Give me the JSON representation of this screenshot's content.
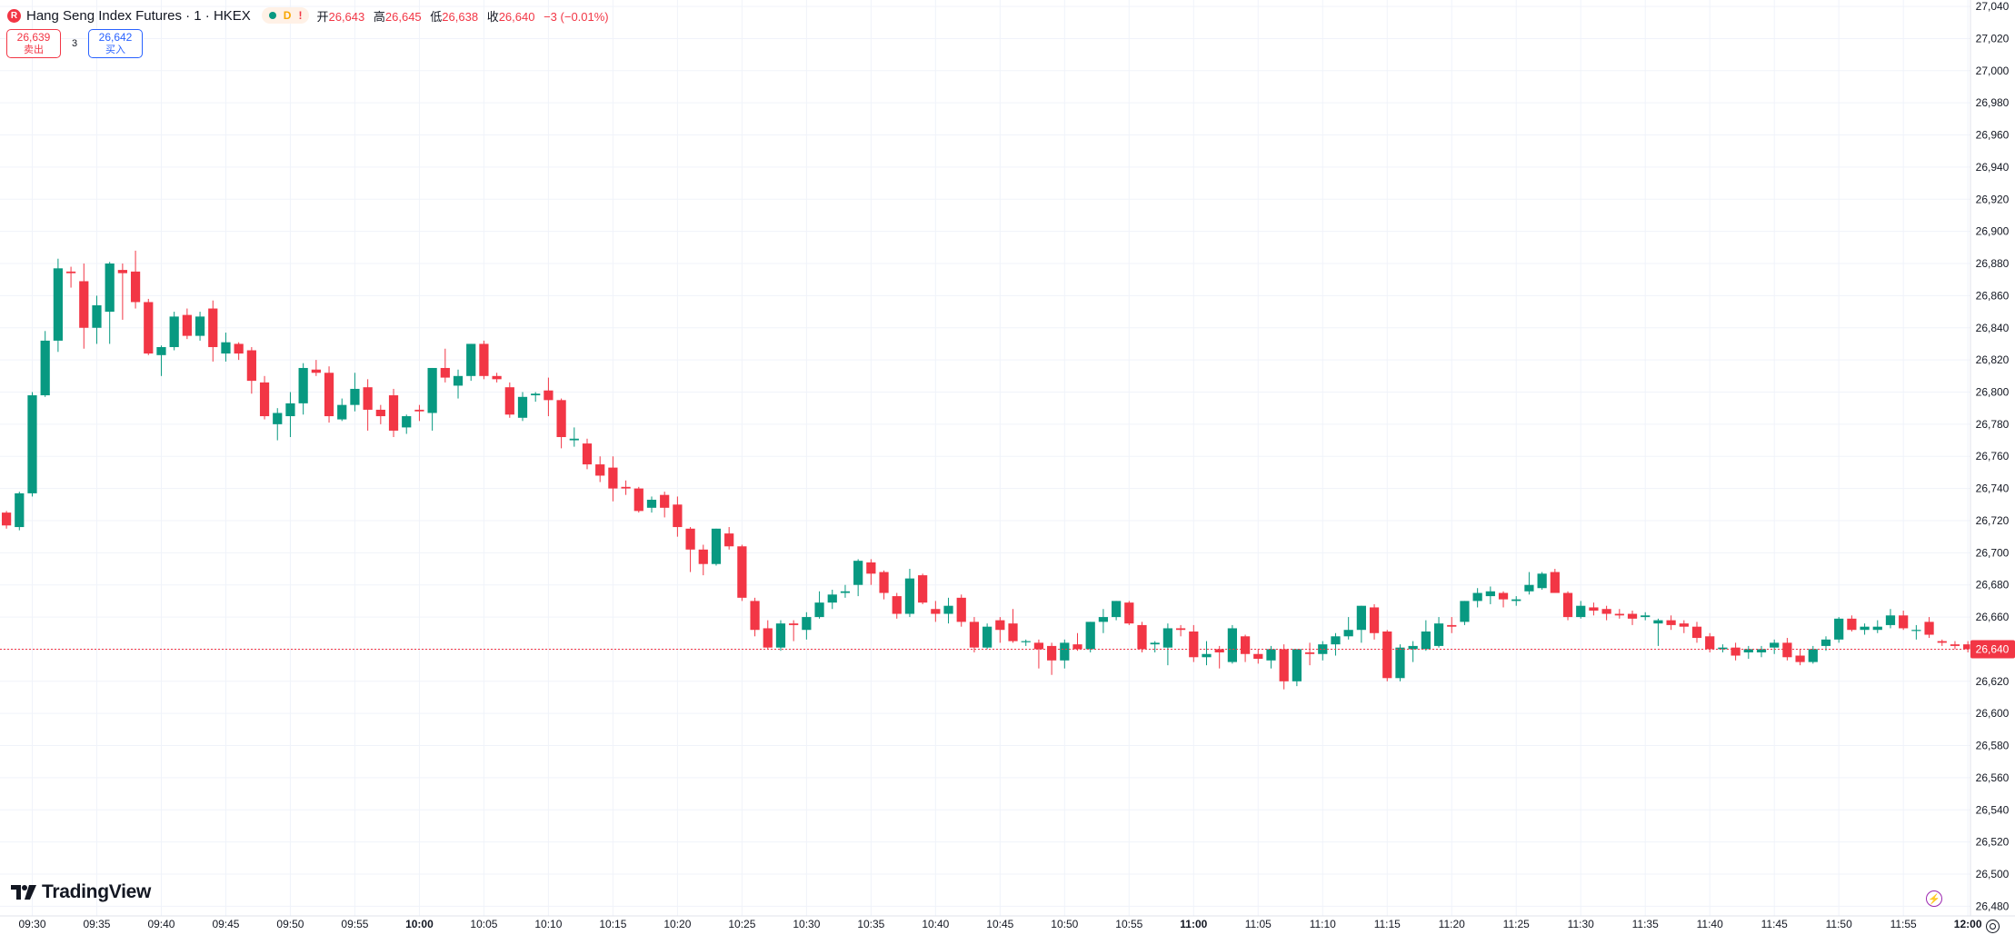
{
  "header": {
    "symbol_icon": "R",
    "title": "Hang Seng Index Futures · 1 · HKEX",
    "status": {
      "market_dot": "green-dot",
      "delay_label": "D",
      "warning_label": "!"
    },
    "ohlc": {
      "open_label": "开",
      "open": "26,643",
      "high_label": "高",
      "high": "26,645",
      "low_label": "低",
      "low": "26,638",
      "close_label": "收",
      "close": "26,640",
      "change": "−3 (−0.01%)"
    }
  },
  "trade": {
    "sell_price": "26,639",
    "sell_label": "卖出",
    "spread": "3",
    "buy_price": "26,642",
    "buy_label": "买入"
  },
  "branding": {
    "name": "TradingView"
  },
  "colors": {
    "up": "#089981",
    "down": "#f23645",
    "last_price": "#f23645",
    "grid": "#f0f3fa",
    "text": "#131722"
  },
  "chart_data": {
    "type": "candlestick",
    "interval": "1 minute",
    "y_ticks": [
      27040,
      27020,
      27000,
      26980,
      26960,
      26940,
      26920,
      26900,
      26880,
      26860,
      26840,
      26820,
      26800,
      26780,
      26760,
      26740,
      26720,
      26700,
      26680,
      26660,
      26640,
      26620,
      26600,
      26580,
      26560,
      26540,
      26520,
      26500,
      26480
    ],
    "y_tick_labels": [
      "27,040",
      "27,020",
      "27,000",
      "26,980",
      "26,960",
      "26,940",
      "26,920",
      "26,900",
      "26,880",
      "26,860",
      "26,840",
      "26,820",
      "26,800",
      "26,780",
      "26,760",
      "26,740",
      "26,720",
      "26,700",
      "26,680",
      "26,660",
      "26,640",
      "26,620",
      "26,600",
      "26,580",
      "26,560",
      "26,540",
      "26,520",
      "26,500",
      "26,480"
    ],
    "x_ticks": [
      {
        "label": "09:30",
        "index": 2,
        "bold": false
      },
      {
        "label": "09:35",
        "index": 7,
        "bold": false
      },
      {
        "label": "09:40",
        "index": 12,
        "bold": false
      },
      {
        "label": "09:45",
        "index": 17,
        "bold": false
      },
      {
        "label": "09:50",
        "index": 22,
        "bold": false
      },
      {
        "label": "09:55",
        "index": 27,
        "bold": false
      },
      {
        "label": "10:00",
        "index": 32,
        "bold": true
      },
      {
        "label": "10:05",
        "index": 37,
        "bold": false
      },
      {
        "label": "10:10",
        "index": 42,
        "bold": false
      },
      {
        "label": "10:15",
        "index": 47,
        "bold": false
      },
      {
        "label": "10:20",
        "index": 52,
        "bold": false
      },
      {
        "label": "10:25",
        "index": 57,
        "bold": false
      },
      {
        "label": "10:30",
        "index": 62,
        "bold": false
      },
      {
        "label": "10:35",
        "index": 67,
        "bold": false
      },
      {
        "label": "10:40",
        "index": 72,
        "bold": false
      },
      {
        "label": "10:45",
        "index": 77,
        "bold": false
      },
      {
        "label": "10:50",
        "index": 82,
        "bold": false
      },
      {
        "label": "10:55",
        "index": 87,
        "bold": false
      },
      {
        "label": "11:00",
        "index": 92,
        "bold": true
      },
      {
        "label": "11:05",
        "index": 97,
        "bold": false
      },
      {
        "label": "11:10",
        "index": 102,
        "bold": false
      },
      {
        "label": "11:15",
        "index": 107,
        "bold": false
      },
      {
        "label": "11:20",
        "index": 112,
        "bold": false
      },
      {
        "label": "11:25",
        "index": 117,
        "bold": false
      },
      {
        "label": "11:30",
        "index": 122,
        "bold": false
      },
      {
        "label": "11:35",
        "index": 127,
        "bold": false
      },
      {
        "label": "11:40",
        "index": 132,
        "bold": false
      },
      {
        "label": "11:45",
        "index": 137,
        "bold": false
      },
      {
        "label": "11:50",
        "index": 142,
        "bold": false
      },
      {
        "label": "11:55",
        "index": 147,
        "bold": false
      },
      {
        "label": "12:00",
        "index": 152,
        "bold": true
      }
    ],
    "y_range": [
      26474,
      27044
    ],
    "x_index_range": [
      -0.5,
      152.2
    ],
    "last_price": 26640,
    "last_price_label": "26,640",
    "grid": true,
    "candles": [
      {
        "o": 26725,
        "h": 26726,
        "l": 26715,
        "c": 26717
      },
      {
        "o": 26716,
        "h": 26738,
        "l": 26714,
        "c": 26737
      },
      {
        "o": 26737,
        "h": 26800,
        "l": 26735,
        "c": 26798
      },
      {
        "o": 26798,
        "h": 26838,
        "l": 26797,
        "c": 26832
      },
      {
        "o": 26832,
        "h": 26883,
        "l": 26825,
        "c": 26877
      },
      {
        "o": 26875,
        "h": 26878,
        "l": 26865,
        "c": 26874
      },
      {
        "o": 26869,
        "h": 26880,
        "l": 26827,
        "c": 26840
      },
      {
        "o": 26840,
        "h": 26860,
        "l": 26830,
        "c": 26854
      },
      {
        "o": 26850,
        "h": 26881,
        "l": 26830,
        "c": 26880
      },
      {
        "o": 26876,
        "h": 26880,
        "l": 26845,
        "c": 26874
      },
      {
        "o": 26875,
        "h": 26888,
        "l": 26852,
        "c": 26856
      },
      {
        "o": 26856,
        "h": 26858,
        "l": 26823,
        "c": 26824
      },
      {
        "o": 26823,
        "h": 26829,
        "l": 26810,
        "c": 26828
      },
      {
        "o": 26828,
        "h": 26850,
        "l": 26826,
        "c": 26847
      },
      {
        "o": 26848,
        "h": 26852,
        "l": 26833,
        "c": 26835
      },
      {
        "o": 26835,
        "h": 26850,
        "l": 26832,
        "c": 26847
      },
      {
        "o": 26852,
        "h": 26857,
        "l": 26819,
        "c": 26828
      },
      {
        "o": 26824,
        "h": 26837,
        "l": 26819,
        "c": 26831
      },
      {
        "o": 26830,
        "h": 26831,
        "l": 26820,
        "c": 26824
      },
      {
        "o": 26826,
        "h": 26828,
        "l": 26799,
        "c": 26807
      },
      {
        "o": 26806,
        "h": 26810,
        "l": 26783,
        "c": 26785
      },
      {
        "o": 26780,
        "h": 26790,
        "l": 26770,
        "c": 26787
      },
      {
        "o": 26785,
        "h": 26800,
        "l": 26772,
        "c": 26793
      },
      {
        "o": 26793,
        "h": 26818,
        "l": 26786,
        "c": 26815
      },
      {
        "o": 26814,
        "h": 26820,
        "l": 26810,
        "c": 26812
      },
      {
        "o": 26812,
        "h": 26816,
        "l": 26781,
        "c": 26785
      },
      {
        "o": 26783,
        "h": 26796,
        "l": 26782,
        "c": 26792
      },
      {
        "o": 26792,
        "h": 26812,
        "l": 26788,
        "c": 26802
      },
      {
        "o": 26803,
        "h": 26808,
        "l": 26776,
        "c": 26789
      },
      {
        "o": 26789,
        "h": 26792,
        "l": 26780,
        "c": 26785
      },
      {
        "o": 26798,
        "h": 26802,
        "l": 26772,
        "c": 26776
      },
      {
        "o": 26778,
        "h": 26786,
        "l": 26774,
        "c": 26785
      },
      {
        "o": 26789,
        "h": 26792,
        "l": 26782,
        "c": 26788
      },
      {
        "o": 26787,
        "h": 26815,
        "l": 26776,
        "c": 26815
      },
      {
        "o": 26815,
        "h": 26827,
        "l": 26806,
        "c": 26809
      },
      {
        "o": 26804,
        "h": 26814,
        "l": 26796,
        "c": 26810
      },
      {
        "o": 26810,
        "h": 26830,
        "l": 26807,
        "c": 26830
      },
      {
        "o": 26830,
        "h": 26832,
        "l": 26808,
        "c": 26810
      },
      {
        "o": 26810,
        "h": 26812,
        "l": 26806,
        "c": 26808
      },
      {
        "o": 26803,
        "h": 26806,
        "l": 26784,
        "c": 26786
      },
      {
        "o": 26784,
        "h": 26800,
        "l": 26782,
        "c": 26797
      },
      {
        "o": 26798,
        "h": 26800,
        "l": 26794,
        "c": 26799
      },
      {
        "o": 26801,
        "h": 26809,
        "l": 26785,
        "c": 26795
      },
      {
        "o": 26795,
        "h": 26796,
        "l": 26765,
        "c": 26772
      },
      {
        "o": 26770,
        "h": 26778,
        "l": 26766,
        "c": 26771
      },
      {
        "o": 26768,
        "h": 26771,
        "l": 26752,
        "c": 26755
      },
      {
        "o": 26755,
        "h": 26760,
        "l": 26744,
        "c": 26748
      },
      {
        "o": 26753,
        "h": 26760,
        "l": 26732,
        "c": 26740
      },
      {
        "o": 26741,
        "h": 26745,
        "l": 26736,
        "c": 26740
      },
      {
        "o": 26740,
        "h": 26741,
        "l": 26725,
        "c": 26726
      },
      {
        "o": 26728,
        "h": 26735,
        "l": 26725,
        "c": 26733
      },
      {
        "o": 26736,
        "h": 26738,
        "l": 26722,
        "c": 26728
      },
      {
        "o": 26730,
        "h": 26735,
        "l": 26710,
        "c": 26716
      },
      {
        "o": 26715,
        "h": 26716,
        "l": 26688,
        "c": 26702
      },
      {
        "o": 26702,
        "h": 26705,
        "l": 26686,
        "c": 26693
      },
      {
        "o": 26693,
        "h": 26715,
        "l": 26692,
        "c": 26715
      },
      {
        "o": 26712,
        "h": 26716,
        "l": 26702,
        "c": 26704
      },
      {
        "o": 26704,
        "h": 26705,
        "l": 26670,
        "c": 26672
      },
      {
        "o": 26670,
        "h": 26672,
        "l": 26648,
        "c": 26652
      },
      {
        "o": 26653,
        "h": 26658,
        "l": 26640,
        "c": 26641
      },
      {
        "o": 26641,
        "h": 26658,
        "l": 26639,
        "c": 26656
      },
      {
        "o": 26656,
        "h": 26658,
        "l": 26645,
        "c": 26655
      },
      {
        "o": 26652,
        "h": 26663,
        "l": 26646,
        "c": 26660
      },
      {
        "o": 26660,
        "h": 26676,
        "l": 26659,
        "c": 26669
      },
      {
        "o": 26669,
        "h": 26677,
        "l": 26665,
        "c": 26674
      },
      {
        "o": 26675,
        "h": 26680,
        "l": 26672,
        "c": 26676
      },
      {
        "o": 26680,
        "h": 26696,
        "l": 26673,
        "c": 26695
      },
      {
        "o": 26694,
        "h": 26696,
        "l": 26680,
        "c": 26687
      },
      {
        "o": 26688,
        "h": 26689,
        "l": 26671,
        "c": 26675
      },
      {
        "o": 26673,
        "h": 26675,
        "l": 26659,
        "c": 26662
      },
      {
        "o": 26662,
        "h": 26690,
        "l": 26660,
        "c": 26684
      },
      {
        "o": 26686,
        "h": 26687,
        "l": 26668,
        "c": 26669
      },
      {
        "o": 26665,
        "h": 26670,
        "l": 26657,
        "c": 26662
      },
      {
        "o": 26662,
        "h": 26672,
        "l": 26656,
        "c": 26667
      },
      {
        "o": 26672,
        "h": 26674,
        "l": 26654,
        "c": 26657
      },
      {
        "o": 26657,
        "h": 26660,
        "l": 26638,
        "c": 26641
      },
      {
        "o": 26641,
        "h": 26656,
        "l": 26640,
        "c": 26654
      },
      {
        "o": 26658,
        "h": 26660,
        "l": 26644,
        "c": 26652
      },
      {
        "o": 26656,
        "h": 26665,
        "l": 26644,
        "c": 26645
      },
      {
        "o": 26645,
        "h": 26646,
        "l": 26642,
        "c": 26645
      },
      {
        "o": 26644,
        "h": 26646,
        "l": 26628,
        "c": 26640
      },
      {
        "o": 26642,
        "h": 26644,
        "l": 26624,
        "c": 26633
      },
      {
        "o": 26633,
        "h": 26646,
        "l": 26628,
        "c": 26644
      },
      {
        "o": 26643,
        "h": 26650,
        "l": 26639,
        "c": 26640
      },
      {
        "o": 26640,
        "h": 26657,
        "l": 26638,
        "c": 26657
      },
      {
        "o": 26657,
        "h": 26665,
        "l": 26650,
        "c": 26660
      },
      {
        "o": 26660,
        "h": 26670,
        "l": 26658,
        "c": 26670
      },
      {
        "o": 26669,
        "h": 26670,
        "l": 26655,
        "c": 26656
      },
      {
        "o": 26655,
        "h": 26657,
        "l": 26638,
        "c": 26640
      },
      {
        "o": 26643,
        "h": 26645,
        "l": 26638,
        "c": 26644
      },
      {
        "o": 26641,
        "h": 26656,
        "l": 26630,
        "c": 26653
      },
      {
        "o": 26653,
        "h": 26655,
        "l": 26648,
        "c": 26652
      },
      {
        "o": 26651,
        "h": 26655,
        "l": 26632,
        "c": 26635
      },
      {
        "o": 26635,
        "h": 26645,
        "l": 26630,
        "c": 26637
      },
      {
        "o": 26640,
        "h": 26642,
        "l": 26628,
        "c": 26638
      },
      {
        "o": 26632,
        "h": 26655,
        "l": 26631,
        "c": 26653
      },
      {
        "o": 26648,
        "h": 26649,
        "l": 26632,
        "c": 26637
      },
      {
        "o": 26637,
        "h": 26640,
        "l": 26631,
        "c": 26634
      },
      {
        "o": 26633,
        "h": 26642,
        "l": 26628,
        "c": 26640
      },
      {
        "o": 26640,
        "h": 26643,
        "l": 26615,
        "c": 26620
      },
      {
        "o": 26620,
        "h": 26640,
        "l": 26617,
        "c": 26640
      },
      {
        "o": 26638,
        "h": 26644,
        "l": 26630,
        "c": 26637
      },
      {
        "o": 26637,
        "h": 26645,
        "l": 26633,
        "c": 26643
      },
      {
        "o": 26643,
        "h": 26650,
        "l": 26636,
        "c": 26648
      },
      {
        "o": 26648,
        "h": 26660,
        "l": 26646,
        "c": 26652
      },
      {
        "o": 26652,
        "h": 26667,
        "l": 26644,
        "c": 26667
      },
      {
        "o": 26666,
        "h": 26668,
        "l": 26646,
        "c": 26650
      },
      {
        "o": 26651,
        "h": 26652,
        "l": 26620,
        "c": 26622
      },
      {
        "o": 26622,
        "h": 26643,
        "l": 26620,
        "c": 26641
      },
      {
        "o": 26640,
        "h": 26645,
        "l": 26632,
        "c": 26642
      },
      {
        "o": 26640,
        "h": 26658,
        "l": 26639,
        "c": 26651
      },
      {
        "o": 26642,
        "h": 26660,
        "l": 26641,
        "c": 26656
      },
      {
        "o": 26655,
        "h": 26660,
        "l": 26650,
        "c": 26654
      },
      {
        "o": 26657,
        "h": 26670,
        "l": 26655,
        "c": 26670
      },
      {
        "o": 26670,
        "h": 26678,
        "l": 26666,
        "c": 26675
      },
      {
        "o": 26673,
        "h": 26679,
        "l": 26668,
        "c": 26676
      },
      {
        "o": 26675,
        "h": 26676,
        "l": 26666,
        "c": 26671
      },
      {
        "o": 26670,
        "h": 26673,
        "l": 26667,
        "c": 26671
      },
      {
        "o": 26676,
        "h": 26688,
        "l": 26674,
        "c": 26680
      },
      {
        "o": 26678,
        "h": 26688,
        "l": 26677,
        "c": 26687
      },
      {
        "o": 26688,
        "h": 26690,
        "l": 26676,
        "c": 26675
      },
      {
        "o": 26675,
        "h": 26676,
        "l": 26658,
        "c": 26660
      },
      {
        "o": 26660,
        "h": 26670,
        "l": 26659,
        "c": 26667
      },
      {
        "o": 26666,
        "h": 26669,
        "l": 26661,
        "c": 26664
      },
      {
        "o": 26665,
        "h": 26667,
        "l": 26658,
        "c": 26662
      },
      {
        "o": 26662,
        "h": 26665,
        "l": 26659,
        "c": 26661
      },
      {
        "o": 26662,
        "h": 26664,
        "l": 26655,
        "c": 26659
      },
      {
        "o": 26660,
        "h": 26663,
        "l": 26658,
        "c": 26661
      },
      {
        "o": 26656,
        "h": 26659,
        "l": 26642,
        "c": 26658
      },
      {
        "o": 26658,
        "h": 26661,
        "l": 26652,
        "c": 26655
      },
      {
        "o": 26656,
        "h": 26658,
        "l": 26650,
        "c": 26654
      },
      {
        "o": 26654,
        "h": 26657,
        "l": 26644,
        "c": 26647
      },
      {
        "o": 26648,
        "h": 26650,
        "l": 26638,
        "c": 26640
      },
      {
        "o": 26640,
        "h": 26643,
        "l": 26638,
        "c": 26641
      },
      {
        "o": 26641,
        "h": 26644,
        "l": 26633,
        "c": 26636
      },
      {
        "o": 26638,
        "h": 26642,
        "l": 26634,
        "c": 26640
      },
      {
        "o": 26638,
        "h": 26642,
        "l": 26635,
        "c": 26640
      },
      {
        "o": 26641,
        "h": 26646,
        "l": 26637,
        "c": 26644
      },
      {
        "o": 26644,
        "h": 26647,
        "l": 26633,
        "c": 26635
      },
      {
        "o": 26636,
        "h": 26640,
        "l": 26630,
        "c": 26632
      },
      {
        "o": 26632,
        "h": 26642,
        "l": 26631,
        "c": 26640
      },
      {
        "o": 26642,
        "h": 26648,
        "l": 26639,
        "c": 26646
      },
      {
        "o": 26646,
        "h": 26660,
        "l": 26644,
        "c": 26659
      },
      {
        "o": 26659,
        "h": 26661,
        "l": 26651,
        "c": 26652
      },
      {
        "o": 26652,
        "h": 26656,
        "l": 26649,
        "c": 26654
      },
      {
        "o": 26652,
        "h": 26658,
        "l": 26650,
        "c": 26654
      },
      {
        "o": 26655,
        "h": 26665,
        "l": 26653,
        "c": 26661
      },
      {
        "o": 26661,
        "h": 26664,
        "l": 26652,
        "c": 26653
      },
      {
        "o": 26652,
        "h": 26655,
        "l": 26646,
        "c": 26652
      },
      {
        "o": 26657,
        "h": 26660,
        "l": 26647,
        "c": 26649
      },
      {
        "o": 26645,
        "h": 26646,
        "l": 26642,
        "c": 26644
      },
      {
        "o": 26643,
        "h": 26645,
        "l": 26640,
        "c": 26642
      },
      {
        "o": 26643,
        "h": 26645,
        "l": 26638,
        "c": 26640
      }
    ]
  }
}
